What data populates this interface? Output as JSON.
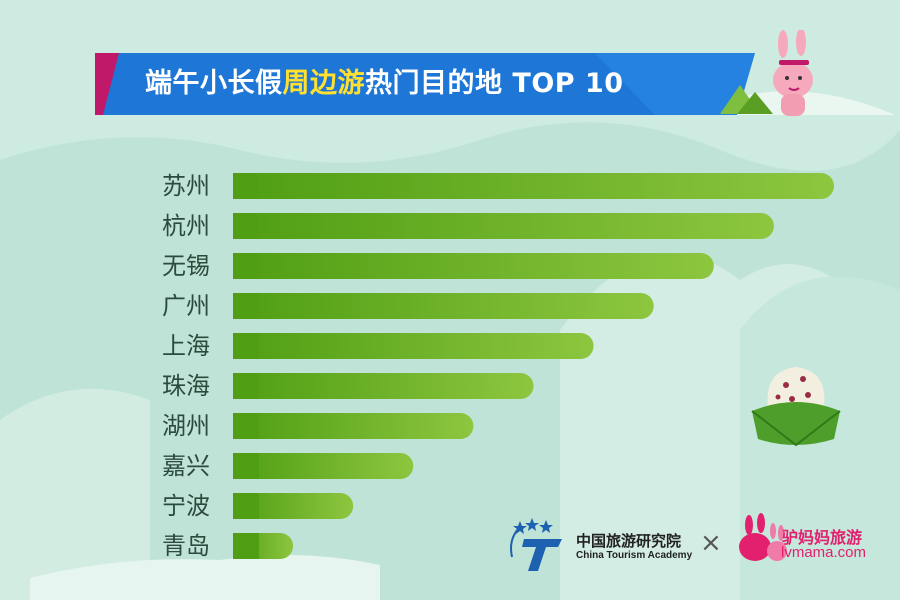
{
  "title": {
    "part1": "端午小长假",
    "highlight": "周边游",
    "part2": "热门目的地 TOP 10"
  },
  "colors": {
    "bar_dark": "#4f9e13",
    "bar_light": "#8dc63f",
    "banner": "#1e77d6",
    "accent": "#c0196a",
    "highlight": "#ffe030",
    "background": "#bfe3d6"
  },
  "chart_data": {
    "type": "bar",
    "orientation": "horizontal",
    "categories": [
      "苏州",
      "杭州",
      "无锡",
      "广州",
      "上海",
      "珠海",
      "湖州",
      "嘉兴",
      "宁波",
      "青岛"
    ],
    "values": [
      10,
      9,
      8,
      7,
      6,
      5,
      4,
      3,
      2,
      1
    ],
    "title": "端午小长假周边游热门目的地 TOP 10",
    "xlabel": "",
    "ylabel": "",
    "grid": false,
    "legend": "none"
  },
  "logos": {
    "cta_cn": "中国旅游研究院",
    "cta_en": "China Tourism Academy",
    "separator": "×",
    "lvmama_cn": "驴妈妈旅游",
    "lvmama_en": "lvmama.com"
  }
}
